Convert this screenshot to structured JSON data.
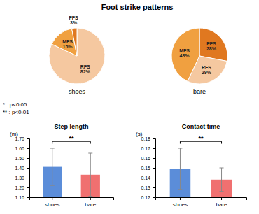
{
  "title": "Foot strike patterns",
  "annotations": [
    "* : p<0.05",
    "** : p<0.01"
  ],
  "chart_data": [
    {
      "type": "pie",
      "title": "shoes",
      "categories": [
        "RFS",
        "MFS",
        "FFS"
      ],
      "values": [
        82,
        15,
        3
      ],
      "value_labels": [
        "82%",
        "15%",
        "3%"
      ],
      "colors": [
        "#F5C8A0",
        "#F0A040",
        "#E07820"
      ],
      "data_labels": true
    },
    {
      "type": "pie",
      "title": "bare",
      "categories": [
        "FFS",
        "RFS",
        "MFS"
      ],
      "values": [
        28,
        29,
        43
      ],
      "value_labels": [
        "28%",
        "29%",
        "43%"
      ],
      "colors": [
        "#E07820",
        "#F5C8A0",
        "#F0A040"
      ],
      "data_labels": true
    },
    {
      "type": "bar",
      "title": "Step length",
      "ylabel": "(m)",
      "categories": [
        "shoes",
        "bare"
      ],
      "values": [
        1.41,
        1.33
      ],
      "errors": [
        0.19,
        0.22
      ],
      "colors": [
        "#5B8DD9",
        "#F07070"
      ],
      "ylim": [
        1.1,
        1.7
      ],
      "yticks": [
        {
          "value": 1.1,
          "label": "1.10"
        },
        {
          "value": 1.2,
          "label": "1.20"
        },
        {
          "value": 1.3,
          "label": "1.30"
        },
        {
          "value": 1.4,
          "label": "1.40"
        },
        {
          "value": 1.5,
          "label": "1.50"
        },
        {
          "value": 1.6,
          "label": "1.60"
        },
        {
          "value": 1.7,
          "label": "1.70"
        }
      ],
      "annotations": [
        "**"
      ]
    },
    {
      "type": "bar",
      "title": "Contact time",
      "ylabel": "(s)",
      "categories": [
        "shoes",
        "bare"
      ],
      "values": [
        0.149,
        0.138
      ],
      "errors": [
        0.021,
        0.012
      ],
      "colors": [
        "#5B8DD9",
        "#F07070"
      ],
      "ylim": [
        0.12,
        0.18
      ],
      "yticks": [
        0.12,
        0.13,
        0.14,
        0.15,
        0.16,
        0.17,
        0.18
      ],
      "annotations": [
        "**"
      ]
    }
  ]
}
